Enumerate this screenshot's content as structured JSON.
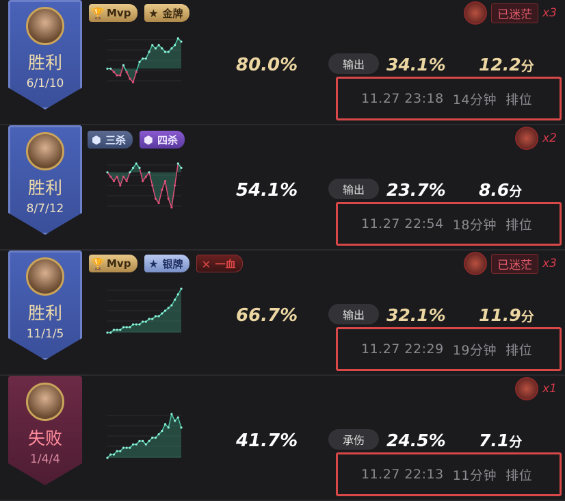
{
  "colors": {
    "gold": "#ecd7a2",
    "win_pennant": "#4a63b8",
    "loss_pennant": "#6c2a45",
    "highlight_box": "#d84848",
    "up": "#4cc9a8",
    "down": "#e0507a"
  },
  "matches": [
    {
      "result": "胜利",
      "outcome": "win",
      "kda": "6/1/10",
      "badges": [
        {
          "type": "mvp",
          "label": "Mvp",
          "icon": "trophy-icon"
        },
        {
          "type": "gold",
          "label": "金牌",
          "icon": "star-medal-icon"
        }
      ],
      "trend": [
        0,
        0,
        -1,
        -2,
        -2,
        1,
        -1,
        -3,
        -4,
        -1,
        2,
        3,
        3,
        5,
        7,
        6,
        7,
        6,
        5,
        5,
        6,
        7,
        9,
        8
      ],
      "rating": "80.0%",
      "rating_color": "gold",
      "stat_label": "输出",
      "share": "34.1%",
      "score": "12.2",
      "score_unit": "分",
      "time": "11.27 23:18",
      "duration": "14分钟",
      "mode": "排位",
      "lost_tag": "已迷茫",
      "lost_count": "x3"
    },
    {
      "result": "胜利",
      "outcome": "win",
      "kda": "8/7/12",
      "badges": [
        {
          "type": "triple",
          "label": "三杀",
          "icon": "kill-icon"
        },
        {
          "type": "quad",
          "label": "四杀",
          "icon": "kill-icon"
        }
      ],
      "trend": [
        0,
        -1,
        -2,
        -1,
        -3,
        -1,
        -2,
        0,
        1,
        2,
        1,
        -2,
        -1,
        0,
        -3,
        -6,
        -7,
        -4,
        -2,
        -6,
        -8,
        -3,
        2,
        1
      ],
      "rating": "54.1%",
      "rating_color": "white",
      "stat_label": "输出",
      "share": "23.7%",
      "score": "8.6",
      "score_unit": "分",
      "time": "11.27 22:54",
      "duration": "18分钟",
      "mode": "排位",
      "lost_tag": "",
      "lost_count": "x2"
    },
    {
      "result": "胜利",
      "outcome": "win",
      "kda": "11/1/5",
      "badges": [
        {
          "type": "mvp",
          "label": "Mvp",
          "icon": "trophy-icon"
        },
        {
          "type": "silver",
          "label": "银牌",
          "icon": "star-medal-icon"
        },
        {
          "type": "fb",
          "label": "一血",
          "icon": "cross-icon"
        }
      ],
      "trend": [
        0,
        0,
        1,
        1,
        1,
        2,
        2,
        2,
        3,
        3,
        3,
        4,
        4,
        5,
        5,
        6,
        6,
        7,
        8,
        9,
        10,
        12,
        14,
        16
      ],
      "rating": "66.7%",
      "rating_color": "gold",
      "stat_label": "输出",
      "share": "32.1%",
      "score": "11.9",
      "score_unit": "分",
      "time": "11.27 22:29",
      "duration": "19分钟",
      "mode": "排位",
      "lost_tag": "已迷茫",
      "lost_count": "x3"
    },
    {
      "result": "失败",
      "outcome": "loss",
      "kda": "1/4/4",
      "badges": [],
      "trend": [
        0,
        1,
        1,
        2,
        2,
        3,
        3,
        3,
        4,
        4,
        5,
        5,
        4,
        5,
        6,
        6,
        7,
        8,
        10,
        9,
        13,
        11,
        12,
        9
      ],
      "rating": "41.7%",
      "rating_color": "white",
      "stat_label": "承伤",
      "share": "24.5%",
      "score": "7.1",
      "score_unit": "分",
      "time": "11.27 22:13",
      "duration": "11分钟",
      "mode": "排位",
      "lost_tag": "",
      "lost_count": "x1"
    }
  ]
}
